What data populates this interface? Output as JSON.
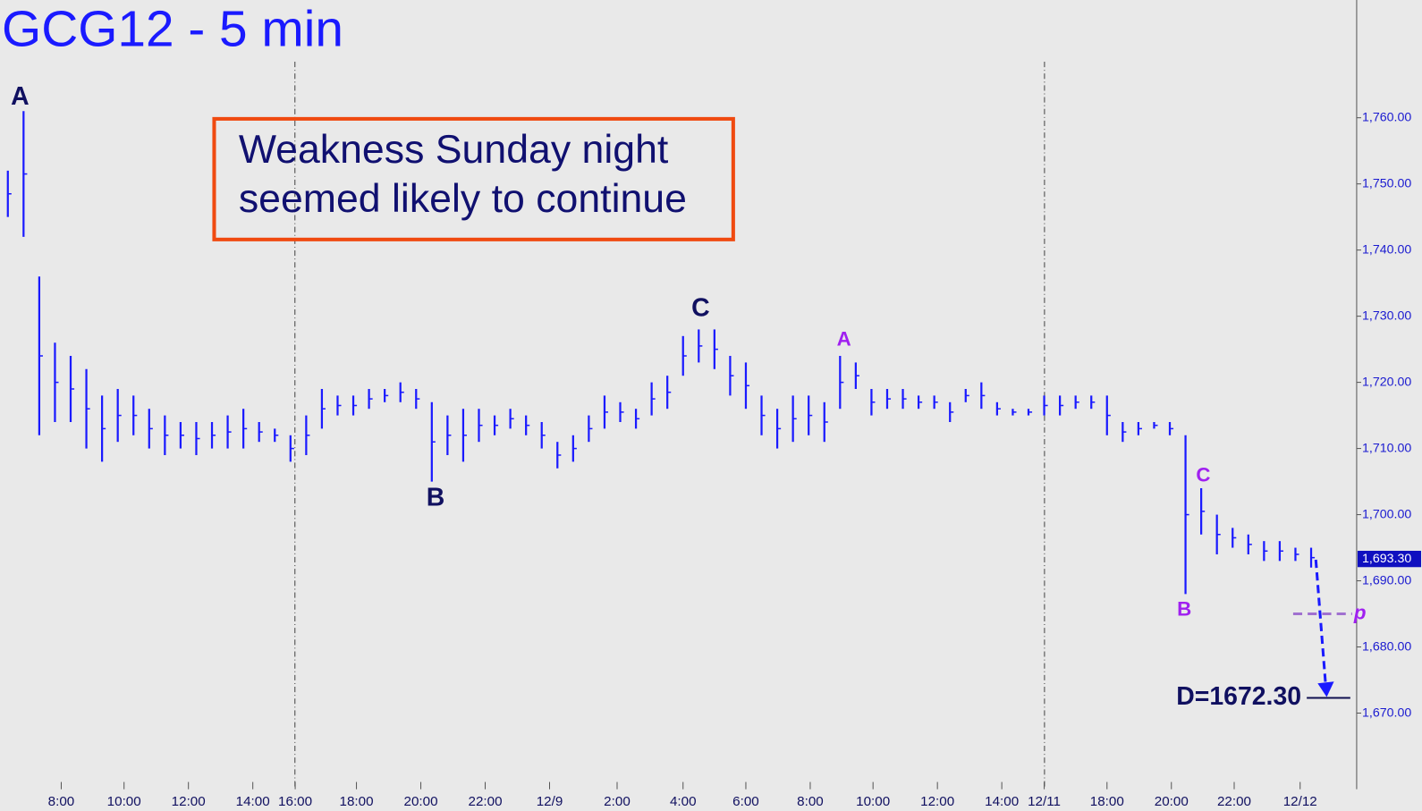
{
  "chart_data": {
    "type": "ohlc",
    "title": "GCG12 - 5 min",
    "note": [
      "Weakness Sunday night",
      "seemed likely to continue"
    ],
    "color": "#1a1aff",
    "x": [
      0,
      1,
      2,
      3,
      4,
      5,
      6,
      7,
      8,
      9,
      10,
      11,
      12,
      13,
      14,
      15,
      16,
      17,
      18,
      19,
      20,
      21,
      22,
      23,
      24,
      25,
      26,
      27,
      28,
      29,
      30,
      31,
      32,
      33,
      34,
      35,
      36,
      37,
      38,
      39,
      40,
      41,
      42,
      43,
      44,
      45,
      46,
      47,
      48,
      49,
      50,
      51,
      52,
      53,
      54,
      55,
      56,
      57,
      58,
      59,
      60,
      61,
      62,
      63,
      64,
      65,
      66,
      67,
      68,
      69,
      70,
      71,
      72,
      73,
      74,
      75,
      76,
      77,
      78,
      79,
      80,
      81,
      82,
      83
    ],
    "high": [
      1752,
      1761,
      1736,
      1726,
      1724,
      1722,
      1718,
      1719,
      1718,
      1716,
      1715,
      1714,
      1714,
      1714,
      1715,
      1716,
      1714,
      1713,
      1712,
      1715,
      1719,
      1718,
      1718,
      1719,
      1719,
      1720,
      1719,
      1717,
      1715,
      1716,
      1716,
      1715,
      1716,
      1715,
      1714,
      1711,
      1712,
      1715,
      1718,
      1717,
      1716,
      1720,
      1721,
      1727,
      1728,
      1728,
      1724,
      1723,
      1718,
      1716,
      1718,
      1718,
      1717,
      1724,
      1723,
      1719,
      1719,
      1719,
      1718,
      1718,
      1717,
      1719,
      1720,
      1717,
      1716,
      1716,
      1718,
      1718,
      1718,
      1718,
      1718,
      1714,
      1714,
      1714,
      1714,
      1712,
      1704,
      1700,
      1698,
      1697,
      1696,
      1696,
      1695,
      1695
    ],
    "low": [
      1745,
      1742,
      1712,
      1714,
      1714,
      1710,
      1708,
      1711,
      1712,
      1710,
      1709,
      1710,
      1709,
      1710,
      1710,
      1710,
      1711,
      1711,
      1708,
      1709,
      1713,
      1715,
      1715,
      1716,
      1717,
      1717,
      1716,
      1705,
      1709,
      1708,
      1711,
      1712,
      1713,
      1712,
      1710,
      1707,
      1708,
      1711,
      1713,
      1714,
      1713,
      1715,
      1716,
      1721,
      1723,
      1722,
      1718,
      1716,
      1712,
      1710,
      1711,
      1712,
      1711,
      1716,
      1719,
      1715,
      1716,
      1716,
      1716,
      1716,
      1714,
      1717,
      1716,
      1715,
      1715,
      1715,
      1715,
      1715,
      1716,
      1716,
      1712,
      1711,
      1712,
      1713,
      1712,
      1688,
      1697,
      1694,
      1695,
      1694,
      1693,
      1693,
      1693,
      1692
    ],
    "xlim": [
      -0.5,
      85.9
    ],
    "xticks": [
      {
        "value": 3.4,
        "label": "8:00"
      },
      {
        "value": 7.4,
        "label": "10:00"
      },
      {
        "value": 11.5,
        "label": "12:00"
      },
      {
        "value": 15.6,
        "label": "14:00"
      },
      {
        "value": 18.3,
        "label": "16:00"
      },
      {
        "value": 22.2,
        "label": "18:00"
      },
      {
        "value": 26.3,
        "label": "20:00"
      },
      {
        "value": 30.4,
        "label": "22:00"
      },
      {
        "value": 34.5,
        "label": "12/9"
      },
      {
        "value": 38.8,
        "label": "2:00"
      },
      {
        "value": 43.0,
        "label": "4:00"
      },
      {
        "value": 47.0,
        "label": "6:00"
      },
      {
        "value": 51.1,
        "label": "8:00"
      },
      {
        "value": 55.1,
        "label": "10:00"
      },
      {
        "value": 59.2,
        "label": "12:00"
      },
      {
        "value": 63.3,
        "label": "14:00"
      },
      {
        "value": 66.0,
        "label": "12/11"
      },
      {
        "value": 70.0,
        "label": "18:00"
      },
      {
        "value": 74.1,
        "label": "20:00"
      },
      {
        "value": 78.1,
        "label": "22:00"
      },
      {
        "value": 82.3,
        "label": "12/12"
      }
    ],
    "ylim": [
      1655.2,
      1777.8
    ],
    "yticks": [
      {
        "value": 1670,
        "label": "1,670.00"
      },
      {
        "value": 1680,
        "label": "1,680.00"
      },
      {
        "value": 1690,
        "label": "1,690.00"
      },
      {
        "value": 1700,
        "label": "1,700.00"
      },
      {
        "value": 1710,
        "label": "1,710.00"
      },
      {
        "value": 1720,
        "label": "1,720.00"
      },
      {
        "value": 1730,
        "label": "1,730.00"
      },
      {
        "value": 1740,
        "label": "1,740.00"
      },
      {
        "value": 1750,
        "label": "1,750.00"
      },
      {
        "value": 1760,
        "label": "1,760.00"
      }
    ],
    "last_price": {
      "value": 1693.3,
      "label": "1,693.30"
    },
    "target": {
      "value": 1672.3,
      "label": "D=1672.30"
    },
    "p_level": {
      "value": 1685,
      "label": "p"
    },
    "labels_major": [
      "A",
      "B",
      "C"
    ],
    "labels_minor": [
      "A",
      "B",
      "C"
    ]
  }
}
